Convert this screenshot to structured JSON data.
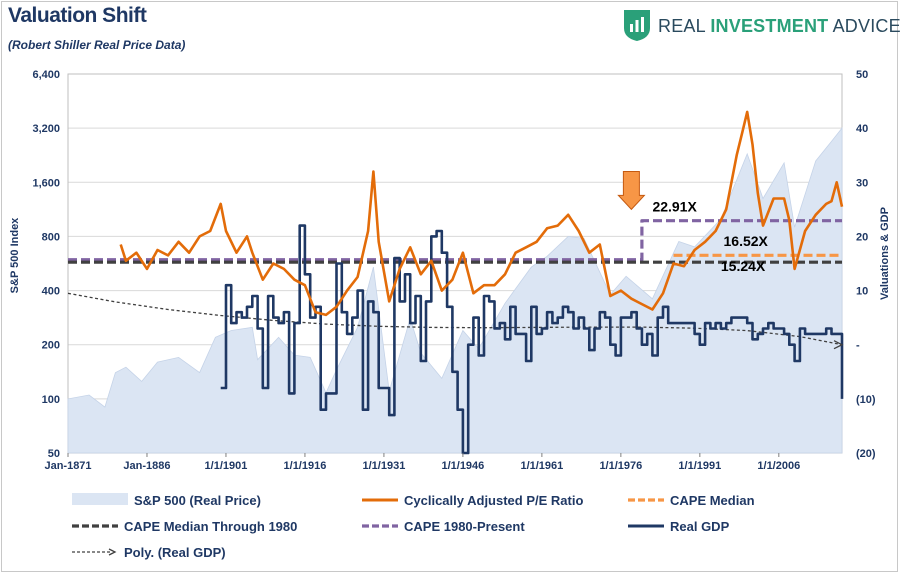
{
  "header": {
    "title": "Valuation Shift",
    "subtitle": "(Robert Shiller Real Price Data)",
    "brand_prefix": "REAL ",
    "brand_bold": "INVESTMENT",
    "brand_suffix": " ADVICE"
  },
  "colors": {
    "sp500_fill": "#dbe5f3",
    "cape": "#e36c09",
    "median": "#f79646",
    "median_1980": "#404040",
    "cape_1980_present": "#8064a2",
    "gdp": "#1f3864",
    "poly": "#404040",
    "axis_text": "#1f3864",
    "grid": "#d9d9d9",
    "arrow": "#f79646"
  },
  "chart_data": {
    "type": "line",
    "title": "Valuation Shift",
    "subtitle": "(Robert Shiller Real Price Data)",
    "x_range": [
      1871,
      2018
    ],
    "x_ticks": [
      {
        "year": 1871,
        "label": "Jan-1871"
      },
      {
        "year": 1886,
        "label": "Jan-1886"
      },
      {
        "year": 1901,
        "label": "1/1/1901"
      },
      {
        "year": 1916,
        "label": "1/1/1916"
      },
      {
        "year": 1931,
        "label": "1/1/1931"
      },
      {
        "year": 1946,
        "label": "1/1/1946"
      },
      {
        "year": 1961,
        "label": "1/1/1961"
      },
      {
        "year": 1976,
        "label": "1/1/1976"
      },
      {
        "year": 1991,
        "label": "1/1/1991"
      },
      {
        "year": 2006,
        "label": "1/1/2006"
      }
    ],
    "y_left": {
      "label": "S&P 500 Index",
      "scale": "log2",
      "range": [
        50,
        6400
      ],
      "ticks": [
        "6,400",
        "3,200",
        "1,600",
        "800",
        "400",
        "200",
        "100",
        "50"
      ],
      "tick_values": [
        6400,
        3200,
        1600,
        800,
        400,
        200,
        100,
        50
      ]
    },
    "y_right": {
      "label": "Valuations & GDP",
      "range": [
        -20,
        50
      ],
      "ticks": [
        "50",
        "40",
        "30",
        "20",
        "10",
        "-",
        "(10)",
        "(20)"
      ],
      "tick_values": [
        50,
        40,
        30,
        20,
        10,
        0,
        -10,
        -20
      ]
    },
    "grid": "horizontal",
    "series": [
      {
        "name": "S&P 500 (Real Price)",
        "kind": "area",
        "axis": "left",
        "x": [
          1871,
          1875,
          1878,
          1880,
          1882,
          1885,
          1888,
          1892,
          1896,
          1899,
          1902,
          1906,
          1907,
          1911,
          1914,
          1917,
          1920,
          1922,
          1926,
          1929,
          1932,
          1936,
          1938,
          1942,
          1946,
          1949,
          1954,
          1959,
          1962,
          1966,
          1969,
          1974,
          1977,
          1982,
          1987,
          1990,
          1995,
          2000,
          2003,
          2007,
          2009,
          2013,
          2016,
          2018
        ],
        "y": [
          100,
          105,
          90,
          140,
          150,
          125,
          160,
          170,
          140,
          220,
          240,
          250,
          165,
          220,
          175,
          170,
          108,
          145,
          250,
          540,
          110,
          280,
          180,
          130,
          240,
          190,
          340,
          540,
          620,
          800,
          780,
          380,
          480,
          360,
          750,
          700,
          1000,
          2300,
          1300,
          2050,
          900,
          2100,
          2700,
          3200
        ]
      },
      {
        "name": "Cyclically Adjusted P/E Ratio",
        "kind": "line",
        "axis": "right",
        "x": [
          1881,
          1882,
          1884,
          1886,
          1888,
          1890,
          1892,
          1894,
          1896,
          1898,
          1900,
          1901,
          1903,
          1905,
          1906,
          1908,
          1910,
          1912,
          1914,
          1916,
          1918,
          1920,
          1922,
          1924,
          1926,
          1928,
          1929,
          1930,
          1932,
          1934,
          1936,
          1938,
          1940,
          1942,
          1944,
          1946,
          1948,
          1950,
          1952,
          1954,
          1956,
          1958,
          1960,
          1962,
          1964,
          1966,
          1968,
          1970,
          1972,
          1974,
          1976,
          1978,
          1980,
          1982,
          1984,
          1986,
          1988,
          1990,
          1992,
          1994,
          1996,
          1998,
          1999,
          2000,
          2001,
          2002,
          2003,
          2005,
          2007,
          2008,
          2009,
          2011,
          2013,
          2015,
          2016,
          2017,
          2018
        ],
        "y": [
          18.5,
          15.5,
          17,
          14,
          17.5,
          16.5,
          19,
          17,
          20,
          21,
          26,
          21,
          17,
          20,
          17,
          12,
          15,
          14,
          12,
          11,
          6,
          5.5,
          7,
          10,
          12.5,
          21,
          32,
          19,
          8,
          14,
          18,
          13,
          15.5,
          10,
          12,
          17,
          9.5,
          11,
          11,
          13,
          17,
          18,
          19,
          21.5,
          22,
          24,
          21,
          17,
          18.5,
          9,
          10,
          8.5,
          7.5,
          6.5,
          9.5,
          15,
          14.5,
          17.5,
          19,
          21,
          25,
          35,
          39,
          43,
          37,
          28,
          22,
          27,
          27,
          23,
          14,
          21,
          24,
          26,
          26.5,
          30,
          25.5
        ]
      },
      {
        "name": "CAPE Median",
        "kind": "hline",
        "axis": "right",
        "x": [
          1986,
          2018
        ],
        "y": [
          16.52,
          16.52
        ]
      },
      {
        "name": "CAPE Median Through 1980",
        "kind": "hline",
        "axis": "right",
        "x": [
          1871,
          2018
        ],
        "y": [
          15.24,
          15.24
        ]
      },
      {
        "name": "CAPE 1980-Present",
        "kind": "step",
        "axis": "right",
        "x": [
          1871,
          1980,
          1980,
          2018
        ],
        "y": [
          15.7,
          15.7,
          22.91,
          22.91
        ]
      },
      {
        "name": "Real GDP",
        "kind": "step",
        "axis": "right",
        "x": [
          1900,
          1901,
          1902,
          1903,
          1904,
          1905,
          1906,
          1907,
          1908,
          1909,
          1910,
          1911,
          1912,
          1913,
          1914,
          1915,
          1916,
          1917,
          1918,
          1919,
          1920,
          1921,
          1922,
          1923,
          1924,
          1925,
          1926,
          1927,
          1928,
          1929,
          1930,
          1931,
          1932,
          1933,
          1934,
          1935,
          1936,
          1937,
          1938,
          1939,
          1940,
          1941,
          1942,
          1943,
          1944,
          1945,
          1946,
          1947,
          1948,
          1949,
          1950,
          1951,
          1952,
          1953,
          1954,
          1955,
          1956,
          1957,
          1958,
          1959,
          1960,
          1961,
          1962,
          1963,
          1964,
          1965,
          1966,
          1967,
          1968,
          1969,
          1970,
          1971,
          1972,
          1973,
          1974,
          1975,
          1976,
          1977,
          1978,
          1979,
          1980,
          1981,
          1982,
          1983,
          1984,
          1985,
          1986,
          1987,
          1988,
          1989,
          1990,
          1991,
          1992,
          1993,
          1994,
          1995,
          1996,
          1997,
          1998,
          1999,
          2000,
          2001,
          2002,
          2003,
          2004,
          2005,
          2006,
          2007,
          2008,
          2009,
          2010,
          2011,
          2012,
          2013,
          2014,
          2015,
          2016,
          2017,
          2018
        ],
        "y": [
          -8,
          11,
          4,
          6,
          5,
          7,
          9,
          3,
          -8,
          9,
          5,
          4,
          6,
          -9,
          4,
          22,
          13,
          5,
          7,
          -12,
          -9,
          -9,
          15,
          6,
          2,
          5,
          10,
          -12,
          8,
          6,
          -8,
          -8,
          -13,
          16,
          8,
          13,
          4,
          9,
          -3,
          8,
          20,
          21,
          17,
          7,
          -5,
          -12,
          -20,
          0,
          5,
          -2,
          9,
          8,
          3,
          4,
          1,
          7,
          2,
          2,
          -3,
          7,
          2,
          3,
          6,
          4,
          5,
          7,
          6,
          3,
          5,
          3,
          -1,
          3,
          6,
          5,
          0,
          -2,
          5,
          5,
          6,
          3,
          0,
          2,
          -2,
          5,
          7,
          4,
          4,
          4,
          4,
          4,
          2,
          0,
          4,
          3,
          4,
          3,
          4,
          5,
          5,
          5,
          4,
          1,
          2,
          3,
          4,
          3,
          3,
          2,
          0,
          -3,
          3,
          2,
          2,
          2,
          2,
          3,
          2,
          2,
          -10
        ]
      },
      {
        "name": "Poly. (Real GDP)",
        "kind": "trend",
        "axis": "right",
        "x": [
          1871,
          1880,
          1890,
          1900,
          1910,
          1920,
          1930,
          1940,
          1950,
          1960,
          1970,
          1980,
          1990,
          2000,
          2010,
          2018
        ],
        "y": [
          9.5,
          7.9,
          6.5,
          5.4,
          4.5,
          3.8,
          3.4,
          3.2,
          3.15,
          3.2,
          3.25,
          3.25,
          3.05,
          2.6,
          1.5,
          0
        ]
      }
    ],
    "annotations": [
      {
        "text": "22.91X",
        "x": 1982,
        "y": 24.6
      },
      {
        "text": "16.52X",
        "x": 1995.5,
        "y": 18.2
      },
      {
        "text": "15.24X",
        "x": 1995,
        "y": 13.6
      }
    ],
    "arrow": {
      "x": 1978,
      "y_top": 32,
      "y_bottom": 25
    }
  },
  "legend": [
    {
      "label": "S&P 500 (Real Price)",
      "swatch": "area"
    },
    {
      "label": "Cyclically Adjusted P/E Ratio",
      "swatch": "cape"
    },
    {
      "label": "CAPE Median",
      "swatch": "median"
    },
    {
      "label": "CAPE Median Through 1980",
      "swatch": "median_1980"
    },
    {
      "label": "CAPE 1980-Present",
      "swatch": "cape_1980_present"
    },
    {
      "label": "Real GDP",
      "swatch": "gdp"
    },
    {
      "label": "Poly. (Real GDP)",
      "swatch": "poly"
    }
  ]
}
